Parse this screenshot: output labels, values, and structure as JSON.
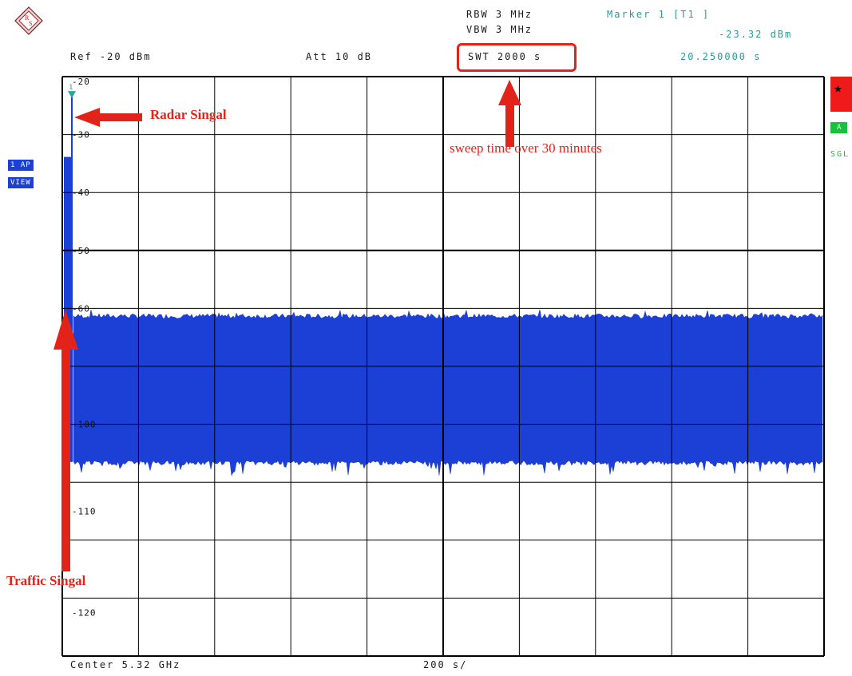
{
  "header": {
    "rbw": "RBW 3 MHz",
    "vbw": "VBW 3 MHz",
    "swt": "SWT 2000 s",
    "marker_label": "Marker 1 [T1 ]",
    "marker_level": "-23.32 dBm",
    "marker_time": "20.250000 s",
    "ref": "Ref -20 dBm",
    "att": "Att 10 dB"
  },
  "footer": {
    "center": "Center 5.32 GHz",
    "span": "200 s/"
  },
  "side": {
    "badge_line1": "1 AP",
    "badge_line2": "VIEW",
    "right_badge": "A",
    "right_text": "SGL",
    "marker_number": "1"
  },
  "annotations": {
    "radar": "Radar Singal",
    "sweep": "sweep time over 30 minutes",
    "traffic": "Traffic Singal"
  },
  "colors": {
    "trace": "#1c3fd6",
    "annotation": "#e2231a",
    "teal_text": "#2a9a9a",
    "grid": "#000000"
  },
  "chart_data": {
    "type": "line",
    "ylabel_unit": "dBm",
    "ylim": [
      -120,
      -20
    ],
    "xlim": [
      0,
      2000
    ],
    "y_ticks": [
      "-20",
      "-30",
      "-40",
      "-50",
      "-60",
      "-100",
      "-110",
      "-120"
    ],
    "y_tick_values": [
      -20,
      -30,
      -40,
      -50,
      -60,
      -100,
      -110,
      -120
    ],
    "grid": true,
    "series": [
      {
        "values_band": {
          "upper_dbm": -61.5,
          "lower_dbm": -86.5,
          "upper_peak_dbm": -60.5,
          "lower_trough_dbm": -88.5
        },
        "spike": {
          "x": 20.25,
          "peak_dbm": -23.32
        }
      }
    ],
    "marker": {
      "x": 20.25,
      "y": -23.32
    }
  }
}
